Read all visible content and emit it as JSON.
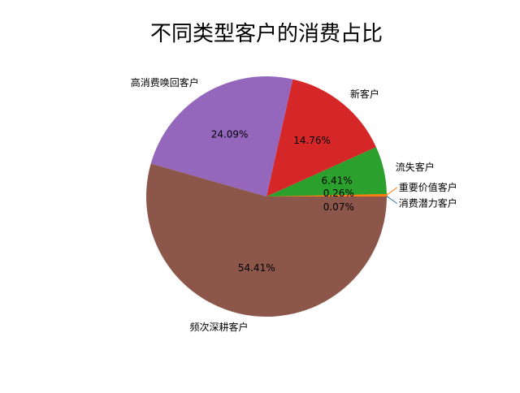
{
  "chart_data": {
    "type": "pie",
    "title": "不同类型客户的消费占比",
    "start_angle_deg": 0,
    "direction": "counterclockwise",
    "slices": [
      {
        "label": "消费潜力客户",
        "value": 0.07,
        "pct_label": "0.07%",
        "color": "#1f77b4"
      },
      {
        "label": "重要价值客户",
        "value": 0.26,
        "pct_label": "0.26%",
        "color": "#ff7f0e"
      },
      {
        "label": "流失客户",
        "value": 6.41,
        "pct_label": "6.41%",
        "color": "#2ca02c"
      },
      {
        "label": "新客户",
        "value": 14.76,
        "pct_label": "14.76%",
        "color": "#d62728"
      },
      {
        "label": "高消费唤回客户",
        "value": 24.09,
        "pct_label": "24.09%",
        "color": "#9467bd"
      },
      {
        "label": "频次深耕客户",
        "value": 54.41,
        "pct_label": "54.41%",
        "color": "#8c564b"
      }
    ]
  }
}
